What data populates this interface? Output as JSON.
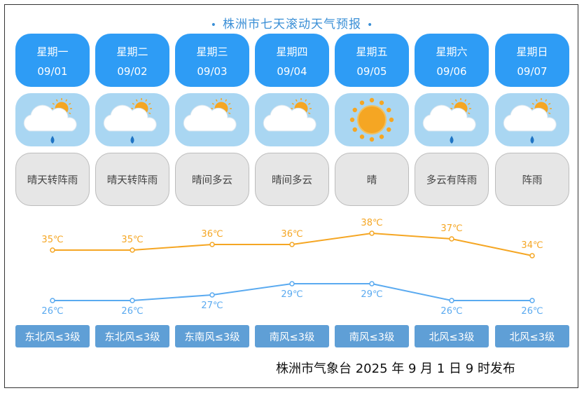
{
  "header": {
    "title": "株洲市七天滚动天气预报",
    "dot_left": "•",
    "dot_right": "•"
  },
  "days": [
    {
      "weekday": "星期一",
      "date": "09/01",
      "icon": "cloud-sun-rain-icon",
      "weather": "晴天转阵雨",
      "high": "35℃",
      "low": "26℃",
      "wind": "东北风≤3级"
    },
    {
      "weekday": "星期二",
      "date": "09/02",
      "icon": "cloud-sun-rain-icon",
      "weather": "晴天转阵雨",
      "high": "35℃",
      "low": "26℃",
      "wind": "东北风≤3级"
    },
    {
      "weekday": "星期三",
      "date": "09/03",
      "icon": "cloud-sun-icon",
      "weather": "晴间多云",
      "high": "36℃",
      "low": "27℃",
      "wind": "东南风≤3级"
    },
    {
      "weekday": "星期四",
      "date": "09/04",
      "icon": "cloud-sun-icon",
      "weather": "晴间多云",
      "high": "36℃",
      "low": "29℃",
      "wind": "南风≤3级"
    },
    {
      "weekday": "星期五",
      "date": "09/05",
      "icon": "sun-icon",
      "weather": "晴",
      "high": "38℃",
      "low": "29℃",
      "wind": "南风≤3级"
    },
    {
      "weekday": "星期六",
      "date": "09/06",
      "icon": "cloud-sun-rain-icon",
      "weather": "多云有阵雨",
      "high": "37℃",
      "low": "26℃",
      "wind": "北风≤3级"
    },
    {
      "weekday": "星期日",
      "date": "09/07",
      "icon": "cloud-sun-rain-icon",
      "weather": "阵雨",
      "high": "34℃",
      "low": "26℃",
      "wind": "北风≤3级"
    }
  ],
  "chart_data": {
    "type": "line",
    "categories": [
      "09/01",
      "09/02",
      "09/03",
      "09/04",
      "09/05",
      "09/06",
      "09/07"
    ],
    "series": [
      {
        "values": [
          35,
          35,
          36,
          36,
          38,
          37,
          34
        ],
        "color": "#f5a623"
      },
      {
        "values": [
          26,
          26,
          27,
          29,
          29,
          26,
          26
        ],
        "color": "#5aaaf0"
      }
    ],
    "unit": "℃",
    "grid": false
  },
  "colors": {
    "accent": "#2e9cf5",
    "icon_bg": "#a9d6f2",
    "high": "#f5a623",
    "low": "#5aaaf0",
    "wind_bg": "#5f9fd6"
  },
  "footer": {
    "text": "株洲市气象台 2025 年 9 月 1 日 9 时发布"
  }
}
